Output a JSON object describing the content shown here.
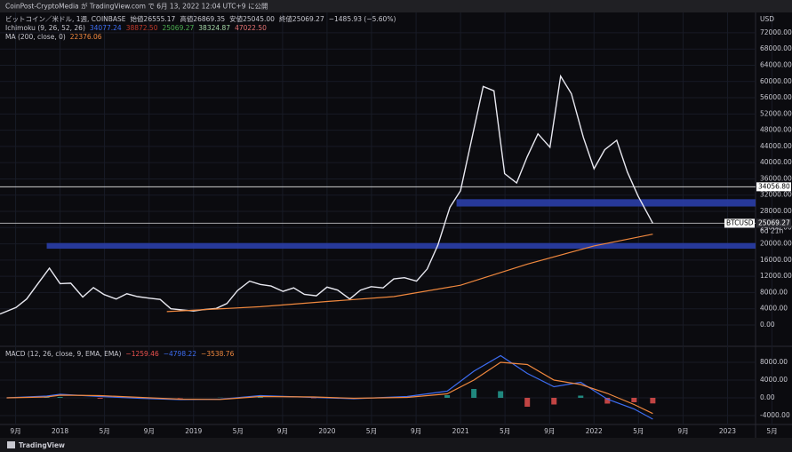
{
  "header": {
    "title": "CoinPost-CryptoMedia が TradingView.com で 6月 13, 2022 12:04 UTC+9 に公開"
  },
  "footer": {
    "brand": "TradingView"
  },
  "chart_data": [
    {
      "type": "line",
      "title": "ビットコイン／米ドル, 1週, COINBASE",
      "ohlc": [
        "始値26555.17",
        "高値26869.35",
        "安値25045.00",
        "終値25069.27",
        "−1485.93 (−5.60%)"
      ],
      "indicators": [
        {
          "name": "Ichimoku (9, 26, 52, 26)",
          "readings": [
            {
              "text": "34077.24",
              "color": "#3d6df2"
            },
            {
              "text": "38872.50",
              "color": "#c0392b"
            },
            {
              "text": "25069.27",
              "color": "#4caf50"
            },
            {
              "text": "38324.87",
              "color": "#a5d6a7"
            },
            {
              "text": "47022.50",
              "color": "#e57373"
            }
          ]
        },
        {
          "name": "MA (200, close, 0)",
          "readings": [
            {
              "text": "22376.06",
              "color": "#f0883e"
            }
          ]
        }
      ],
      "y_unit": "USD",
      "xlim": [
        2017.55,
        2023.21
      ],
      "xticks": [
        {
          "value": 2017.667,
          "label": "9月"
        },
        {
          "value": 2018,
          "label": "2018"
        },
        {
          "value": 2018.333,
          "label": "5月"
        },
        {
          "value": 2018.667,
          "label": "9月"
        },
        {
          "value": 2019,
          "label": "2019"
        },
        {
          "value": 2019.333,
          "label": "5月"
        },
        {
          "value": 2019.667,
          "label": "9月"
        },
        {
          "value": 2020,
          "label": "2020"
        },
        {
          "value": 2020.333,
          "label": "5月"
        },
        {
          "value": 2020.667,
          "label": "9月"
        },
        {
          "value": 2021,
          "label": "2021"
        },
        {
          "value": 2021.333,
          "label": "5月"
        },
        {
          "value": 2021.667,
          "label": "9月"
        },
        {
          "value": 2022,
          "label": "2022"
        },
        {
          "value": 2022.333,
          "label": "5月"
        },
        {
          "value": 2022.667,
          "label": "9月"
        },
        {
          "value": 2023,
          "label": "2023"
        },
        {
          "value": 2023.333,
          "label": "5月"
        }
      ],
      "ylim": [
        -4160,
        76800
      ],
      "yticks": [
        {
          "value": 0,
          "label": "0.00"
        },
        {
          "value": 4000,
          "label": "4000.00"
        },
        {
          "value": 8000,
          "label": "8000.00"
        },
        {
          "value": 12000,
          "label": "12000.00"
        },
        {
          "value": 16000,
          "label": "16000.00"
        },
        {
          "value": 20000,
          "label": "20000.00"
        },
        {
          "value": 24000,
          "label": "24000.00"
        },
        {
          "value": 28000,
          "label": "28000.00"
        },
        {
          "value": 32000,
          "label": "32000.00"
        },
        {
          "value": 36000,
          "label": "36000.00"
        },
        {
          "value": 40000,
          "label": "40000.00"
        },
        {
          "value": 44000,
          "label": "44000.00"
        },
        {
          "value": 48000,
          "label": "48000.00"
        },
        {
          "value": 52000,
          "label": "52000.00"
        },
        {
          "value": 56000,
          "label": "56000.00"
        },
        {
          "value": 60000,
          "label": "60000.00"
        },
        {
          "value": 64000,
          "label": "64000.00"
        },
        {
          "value": 68000,
          "label": "68000.00"
        },
        {
          "value": 72000,
          "label": "72000.00"
        }
      ],
      "grid": true,
      "series": [
        {
          "name": "BTCUSD",
          "color": "#e8e8f0",
          "x": [
            2017.55,
            2017.67,
            2017.75,
            2017.83,
            2017.92,
            2018.0,
            2018.08,
            2018.17,
            2018.25,
            2018.33,
            2018.42,
            2018.5,
            2018.58,
            2018.67,
            2018.75,
            2018.83,
            2018.92,
            2019.0,
            2019.08,
            2019.17,
            2019.25,
            2019.33,
            2019.42,
            2019.5,
            2019.58,
            2019.67,
            2019.75,
            2019.83,
            2019.92,
            2020.0,
            2020.08,
            2020.17,
            2020.25,
            2020.33,
            2020.42,
            2020.5,
            2020.58,
            2020.67,
            2020.75,
            2020.83,
            2020.92,
            2021.0,
            2021.08,
            2021.17,
            2021.25,
            2021.33,
            2021.42,
            2021.5,
            2021.58,
            2021.67,
            2021.75,
            2021.83,
            2021.92,
            2022.0,
            2022.08,
            2022.17,
            2022.25,
            2022.33,
            2022.44
          ],
          "values": [
            2700,
            4300,
            6400,
            10000,
            14000,
            10200,
            10300,
            6900,
            9200,
            7500,
            6400,
            7700,
            7000,
            6600,
            6300,
            4000,
            3700,
            3450,
            3800,
            4100,
            5300,
            8500,
            10800,
            10000,
            9600,
            8300,
            9150,
            7550,
            7200,
            9350,
            8600,
            6400,
            8600,
            9450,
            9140,
            11350,
            11650,
            10800,
            13800,
            19700,
            29000,
            33100,
            45200,
            58800,
            57700,
            37300,
            35000,
            41500,
            47100,
            43800,
            61300,
            57000,
            46200,
            38500,
            43200,
            45500,
            37700,
            31800,
            25069.27
          ]
        },
        {
          "name": "MA (200, close, 0)",
          "color": "#f0883e",
          "x": [
            2018.8,
            2019.5,
            2020.0,
            2020.5,
            2021.0,
            2021.5,
            2022.0,
            2022.44
          ],
          "values": [
            3300,
            4500,
            5800,
            7000,
            9800,
            15000,
            19500,
            22376
          ]
        }
      ],
      "zones": [
        {
          "from": 29200,
          "to": 31000,
          "start": 2020.97,
          "color": "#2a3ea8"
        },
        {
          "from": 18800,
          "to": 20200,
          "start": 2017.9,
          "color": "#2a3ea8"
        }
      ],
      "levels": [
        {
          "value": 34056.8,
          "label": "34056.80",
          "color": "#ffffff"
        },
        {
          "value": 25069.27,
          "label": "25069.27",
          "color": "#d0d0d0"
        }
      ],
      "last_price_tag": {
        "symbol": "BTCUSD",
        "countdown": "6d 21h"
      }
    },
    {
      "type": "macd",
      "title": "MACD (12, 26, close, 9, EMA, EMA)",
      "readings": [
        {
          "text": "−1259.46",
          "color": "#ef5350"
        },
        {
          "text": "−4798.22",
          "color": "#3d6df2"
        },
        {
          "text": "−3538.76",
          "color": "#f0883e"
        }
      ],
      "ylim": [
        -6000,
        11000
      ],
      "yticks": [
        {
          "value": -4000,
          "label": "-4000.00"
        },
        {
          "value": 0,
          "label": "0.00"
        },
        {
          "value": 4000,
          "label": "4000.00"
        },
        {
          "value": 8000,
          "label": "8000.00"
        }
      ],
      "x": [
        2017.6,
        2017.9,
        2018.0,
        2018.3,
        2018.6,
        2018.9,
        2019.2,
        2019.5,
        2019.9,
        2020.2,
        2020.6,
        2020.9,
        2021.1,
        2021.3,
        2021.5,
        2021.7,
        2021.9,
        2022.1,
        2022.3,
        2022.44
      ],
      "series": [
        {
          "name": "MACD",
          "color": "#3d6df2",
          "values": [
            0,
            400,
            800,
            300,
            -100,
            -400,
            -300,
            500,
            100,
            -200,
            300,
            1500,
            6000,
            9500,
            5500,
            2500,
            3500,
            -300,
            -2500,
            -4798.22
          ]
        },
        {
          "name": "Signal",
          "color": "#f0883e",
          "values": [
            0,
            200,
            600,
            500,
            100,
            -300,
            -350,
            300,
            200,
            -100,
            100,
            900,
            4000,
            8000,
            7500,
            4000,
            3000,
            1000,
            -1500,
            -3538.76
          ]
        },
        {
          "name": "Histogram",
          "color": "#26a69a",
          "values": [
            0,
            200,
            200,
            -200,
            -200,
            -100,
            50,
            200,
            -100,
            -100,
            200,
            600,
            2000,
            1500,
            -2000,
            -1500,
            500,
            -1300,
            -1000,
            -1259.46
          ]
        }
      ]
    }
  ]
}
